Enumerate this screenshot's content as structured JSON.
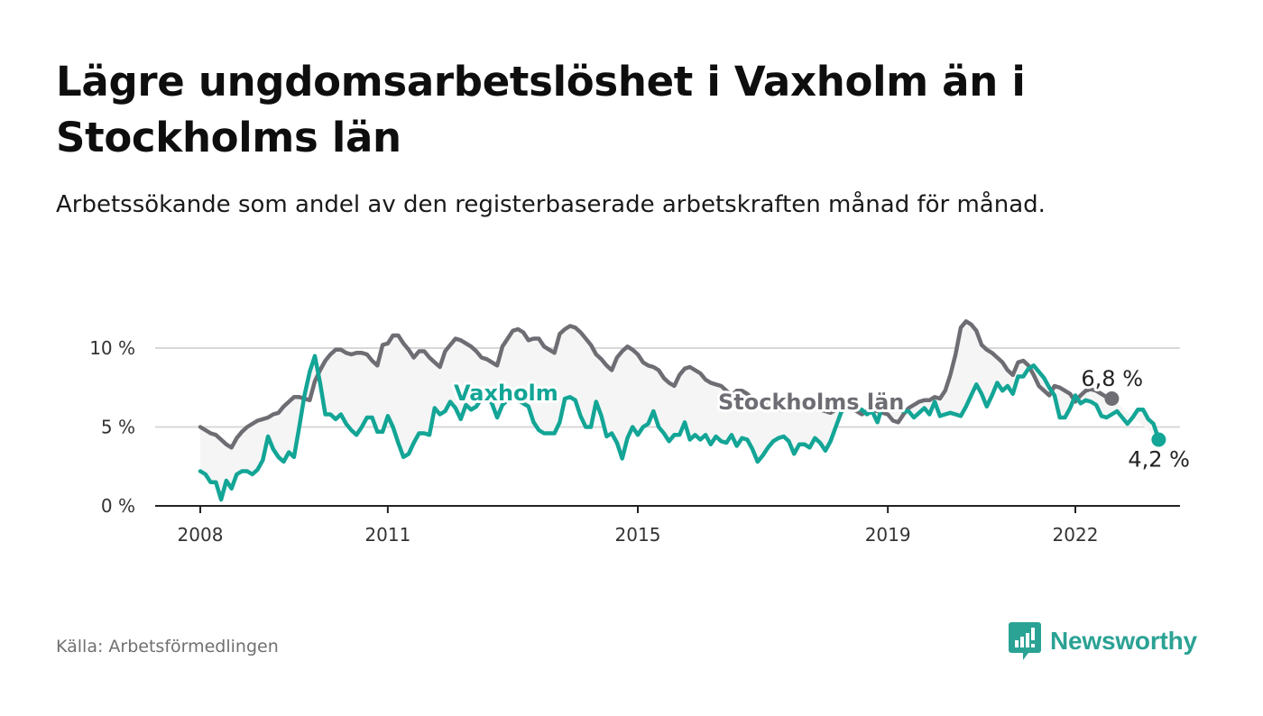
{
  "title": "Lägre ungdomsarbetslöshet i Vaxholm än i Stockholms län",
  "subtitle": "Arbetssökande som andel av den registerbaserade arbetskraften månad för månad.",
  "source": "Källa: Arbetsförmedlingen",
  "brand": "Newsworthy",
  "colors": {
    "vaxholm": "#13a596",
    "lan": "#6e6d73",
    "band": "#f5f5f5",
    "grid": "#d8d8d8",
    "axis": "#222222"
  },
  "chart_data": {
    "type": "line",
    "title": "Lägre ungdomsarbetslöshet i Vaxholm än i Stockholms län",
    "xlabel": "",
    "ylabel": "",
    "x_start": 2008.0,
    "x_step_months": 1,
    "ylim": [
      0,
      12
    ],
    "yticks": [
      0,
      5,
      10
    ],
    "ytick_labels": [
      "0 %",
      "5 %",
      "10 %"
    ],
    "xticks": [
      2008,
      2011,
      2015,
      2019,
      2022
    ],
    "xtick_labels": [
      "2008",
      "2011",
      "2015",
      "2019",
      "2022"
    ],
    "series": [
      {
        "name": "Stockholms län",
        "label": "Stockholms län",
        "end_label": "6,8 %",
        "values": [
          5.0,
          4.8,
          4.6,
          4.5,
          4.2,
          3.9,
          3.7,
          4.3,
          4.7,
          5.0,
          5.2,
          5.4,
          5.5,
          5.6,
          5.8,
          5.9,
          6.3,
          6.6,
          6.9,
          6.9,
          6.8,
          6.7,
          7.9,
          8.6,
          9.2,
          9.6,
          9.9,
          9.9,
          9.7,
          9.6,
          9.7,
          9.7,
          9.6,
          9.2,
          8.9,
          10.2,
          10.3,
          10.8,
          10.8,
          10.3,
          9.9,
          9.4,
          9.8,
          9.8,
          9.4,
          9.1,
          8.8,
          9.8,
          10.2,
          10.6,
          10.5,
          10.3,
          10.1,
          9.8,
          9.4,
          9.3,
          9.1,
          8.9,
          10.1,
          10.6,
          11.1,
          11.2,
          11.0,
          10.5,
          10.6,
          10.6,
          10.1,
          9.9,
          9.7,
          10.9,
          11.2,
          11.4,
          11.3,
          11.0,
          10.6,
          10.2,
          9.6,
          9.3,
          8.9,
          8.6,
          9.4,
          9.8,
          10.1,
          9.9,
          9.6,
          9.1,
          8.9,
          8.8,
          8.6,
          8.1,
          7.8,
          7.6,
          8.3,
          8.7,
          8.8,
          8.6,
          8.4,
          8.0,
          7.8,
          7.7,
          7.6,
          7.3,
          7.0,
          7.3,
          7.3,
          7.1,
          6.8,
          6.6,
          6.5,
          6.3,
          6.2,
          6.1,
          6.2,
          6.5,
          6.4,
          6.3,
          6.2,
          6.2,
          6.2,
          6.1,
          6.0,
          5.9,
          6.1,
          6.3,
          6.3,
          6.2,
          6.0,
          5.8,
          6.0,
          6.1,
          6.0,
          5.9,
          5.8,
          5.4,
          5.3,
          5.8,
          6.2,
          6.4,
          6.6,
          6.7,
          6.7,
          6.9,
          6.8,
          7.3,
          8.3,
          9.6,
          11.3,
          11.7,
          11.5,
          11.1,
          10.2,
          9.9,
          9.7,
          9.4,
          9.1,
          8.6,
          8.3,
          9.1,
          9.2,
          8.9,
          8.3,
          7.6,
          7.3,
          7.0,
          7.6,
          7.5,
          7.3,
          7.1,
          6.6,
          7.0,
          7.3,
          7.4,
          7.3,
          7.1,
          6.9,
          6.8
        ],
        "end_value": 6.8
      },
      {
        "name": "Vaxholm",
        "label": "Vaxholm",
        "end_label": "4,2 %",
        "values": [
          2.2,
          2.0,
          1.5,
          1.5,
          0.4,
          1.6,
          1.1,
          2.0,
          2.2,
          2.2,
          2.0,
          2.3,
          2.9,
          4.4,
          3.6,
          3.1,
          2.8,
          3.4,
          3.1,
          5.0,
          7.0,
          8.5,
          9.5,
          7.8,
          5.8,
          5.8,
          5.5,
          5.8,
          5.2,
          4.8,
          4.5,
          5.0,
          5.6,
          5.6,
          4.7,
          4.7,
          5.7,
          5.0,
          4.0,
          3.1,
          3.3,
          4.0,
          4.6,
          4.6,
          4.5,
          6.2,
          5.8,
          6.0,
          6.6,
          6.2,
          5.5,
          6.4,
          6.1,
          6.3,
          6.8,
          6.9,
          6.5,
          5.6,
          6.4,
          6.7,
          6.8,
          6.7,
          6.5,
          6.3,
          5.3,
          4.8,
          4.6,
          4.6,
          4.6,
          5.3,
          6.8,
          6.9,
          6.7,
          5.7,
          5.0,
          5.0,
          6.6,
          5.7,
          4.4,
          4.6,
          4.0,
          3.0,
          4.3,
          5.0,
          4.5,
          5.0,
          5.2,
          6.0,
          5.0,
          4.6,
          4.1,
          4.5,
          4.5,
          5.3,
          4.2,
          4.5,
          4.2,
          4.5,
          3.9,
          4.4,
          4.1,
          4.0,
          4.5,
          3.8,
          4.3,
          4.2,
          3.6,
          2.8,
          3.2,
          3.7,
          4.1,
          4.3,
          4.4,
          4.1,
          3.3,
          3.9,
          3.9,
          3.7,
          4.3,
          4.0,
          3.5,
          4.1,
          5.0,
          5.9,
          6.4,
          6.4,
          6.2,
          6.1,
          5.8,
          6.0,
          5.3,
          6.4,
          6.5,
          6.4,
          6.2,
          6.0,
          6.0,
          5.6,
          5.9,
          6.2,
          5.8,
          6.6,
          5.7,
          5.8,
          5.9,
          5.8,
          5.7,
          6.3,
          7.0,
          7.7,
          7.1,
          6.3,
          7.0,
          7.8,
          7.3,
          7.6,
          7.1,
          8.2,
          8.2,
          8.7,
          8.9,
          8.5,
          8.1,
          7.5,
          7.0,
          5.6,
          5.6,
          6.2,
          7.0,
          6.5,
          6.7,
          6.6,
          6.4,
          5.7,
          5.6,
          5.8,
          6.0,
          5.6,
          5.2,
          5.6,
          6.1,
          6.1,
          5.5,
          5.2,
          4.2
        ],
        "end_value": 4.2
      }
    ]
  }
}
